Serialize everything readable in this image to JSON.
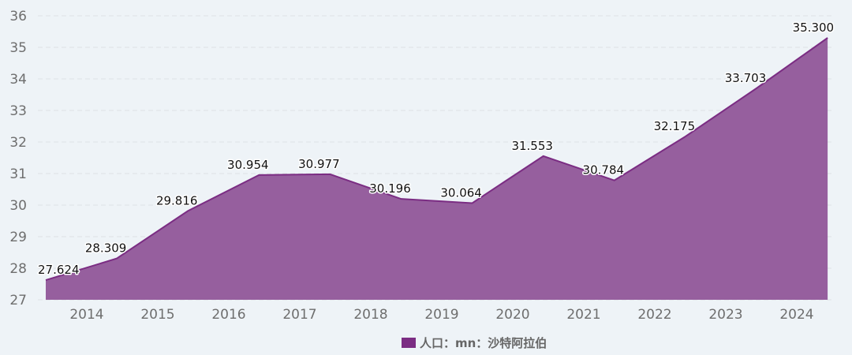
{
  "chart_data": {
    "type": "area",
    "title": "",
    "xlabel": "",
    "ylabel": "",
    "values": [
      27.624,
      28.309,
      29.816,
      30.954,
      30.977,
      30.196,
      30.064,
      31.553,
      30.784,
      32.175,
      33.703,
      35.3
    ],
    "data_labels": [
      "27.624",
      "28.309",
      "29.816",
      "30.954",
      "30.977",
      "30.196",
      "30.064",
      "31.553",
      "30.784",
      "32.175",
      "33.703",
      "35.300"
    ],
    "xticks": [
      "2014",
      "2015",
      "2016",
      "2017",
      "2018",
      "2019",
      "2020",
      "2021",
      "2022",
      "2023",
      "2024"
    ],
    "yticks": [
      "27",
      "28",
      "29",
      "30",
      "31",
      "32",
      "33",
      "34",
      "35",
      "36"
    ],
    "ylim": [
      27,
      36
    ],
    "grid": "horizontal dashed",
    "legend_placement": "bottom-center",
    "series": [
      {
        "name": "人口：mn：沙特阿拉伯",
        "color": "#7b2d83",
        "fill": "#965f9e"
      }
    ]
  },
  "legend": {
    "label": "人口：mn：沙特阿拉伯"
  }
}
